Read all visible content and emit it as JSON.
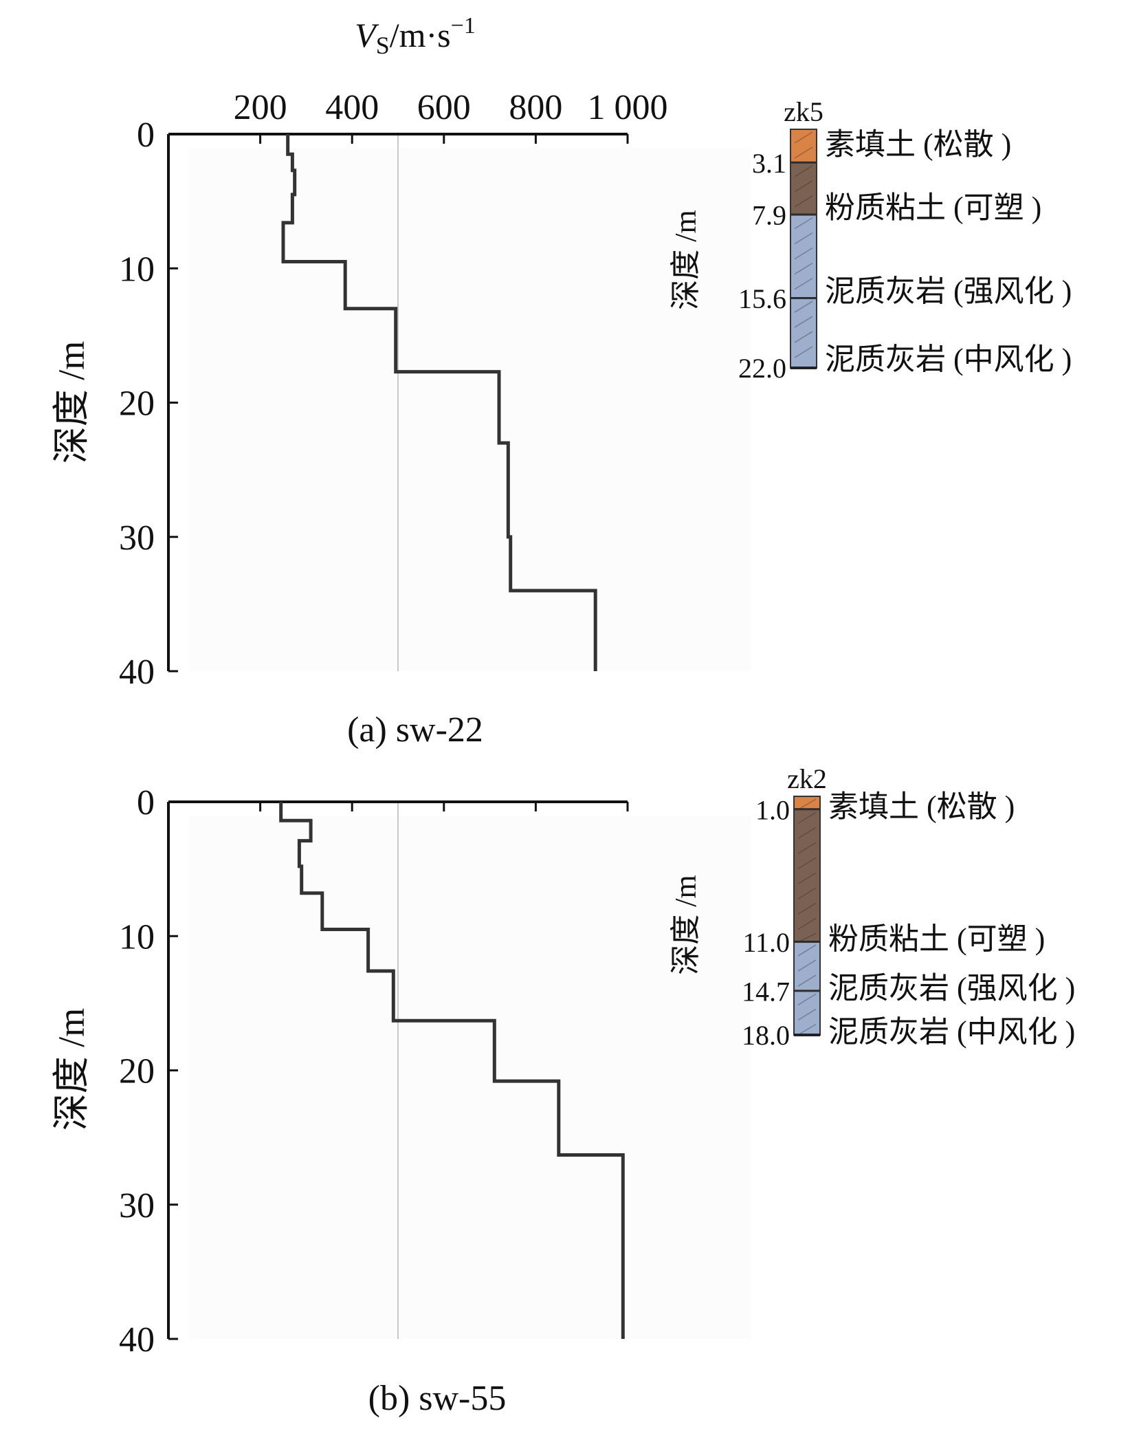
{
  "figure": {
    "x_axis_label": {
      "symbol": "V",
      "subscript": "S",
      "unit": "/m·s",
      "exponent": "−1"
    },
    "y_axis_label": "深度 /m",
    "column_depth_label": "深度 /m"
  },
  "chart_data": [
    {
      "type": "line",
      "id": "panel-a",
      "caption": "(a) sw-22",
      "xlim": [
        0,
        1000
      ],
      "ylim": [
        0,
        40
      ],
      "x_ticks": [
        200,
        400,
        600,
        800,
        1000
      ],
      "x_tick_labels": [
        "200",
        "400",
        "600",
        "800",
        "1 000"
      ],
      "y_ticks": [
        0,
        10,
        20,
        30,
        40
      ],
      "y_tick_labels": [
        "0",
        "10",
        "20",
        "30",
        "40"
      ],
      "y_inverted": true,
      "reference_line_x": 500,
      "series": [
        {
          "x": [
            260,
            260,
            270,
            270,
            275,
            275,
            270,
            270,
            250,
            250,
            385,
            385,
            495,
            495,
            720,
            720,
            740,
            740,
            745,
            745,
            930,
            930
          ],
          "y": [
            0,
            1.5,
            1.5,
            2.7,
            2.7,
            4.5,
            4.5,
            6.6,
            6.6,
            9.5,
            9.5,
            13.0,
            13.0,
            17.7,
            17.7,
            23.0,
            23.0,
            30.0,
            30.0,
            34.0,
            34.0,
            40.0
          ]
        }
      ],
      "borehole": {
        "name": "zk5",
        "layers": [
          {
            "top": 0,
            "bottom": 3.1,
            "depth_label": "3.1",
            "label": "素填土 (松散 )",
            "color": "#d98347"
          },
          {
            "top": 3.1,
            "bottom": 7.9,
            "depth_label": "7.9",
            "label": "粉质粘土 (可塑 )",
            "color": "#7b6152"
          },
          {
            "top": 7.9,
            "bottom": 15.6,
            "depth_label": "15.6",
            "label": "泥质灰岩 (强风化 )",
            "color": "#9dafcc"
          },
          {
            "top": 15.6,
            "bottom": 22.0,
            "depth_label": "22.0",
            "label": "泥质灰岩 (中风化 )",
            "color": "#9dafcc"
          }
        ]
      }
    },
    {
      "type": "line",
      "id": "panel-b",
      "caption": "(b) sw-55",
      "xlim": [
        0,
        1000
      ],
      "ylim": [
        0,
        40
      ],
      "x_ticks": [
        200,
        400,
        600,
        800,
        1000
      ],
      "x_tick_labels": [],
      "y_ticks": [
        0,
        10,
        20,
        30,
        40
      ],
      "y_tick_labels": [
        "0",
        "10",
        "20",
        "30",
        "40"
      ],
      "y_inverted": true,
      "reference_line_x": 500,
      "series": [
        {
          "x": [
            245,
            245,
            310,
            310,
            285,
            285,
            290,
            290,
            335,
            335,
            435,
            435,
            490,
            490,
            710,
            710,
            850,
            850,
            990,
            990
          ],
          "y": [
            0,
            1.4,
            1.4,
            2.9,
            2.9,
            4.8,
            4.8,
            6.8,
            6.8,
            9.5,
            9.5,
            12.6,
            12.6,
            16.3,
            16.3,
            20.8,
            20.8,
            26.3,
            26.3,
            40.0
          ]
        }
      ],
      "borehole": {
        "name": "zk2",
        "layers": [
          {
            "top": 0,
            "bottom": 1.0,
            "depth_label": "1.0",
            "label": "素填土 (松散 )",
            "color": "#d98347"
          },
          {
            "top": 1.0,
            "bottom": 11.0,
            "depth_label": "11.0",
            "label": "粉质粘土 (可塑 )",
            "color": "#7b6152"
          },
          {
            "top": 11.0,
            "bottom": 14.7,
            "depth_label": "14.7",
            "label": "泥质灰岩 (强风化 )",
            "color": "#9dafcc"
          },
          {
            "top": 14.7,
            "bottom": 18.0,
            "depth_label": "18.0",
            "label": "泥质灰岩 (中风化 )",
            "color": "#9dafcc"
          }
        ]
      }
    }
  ]
}
